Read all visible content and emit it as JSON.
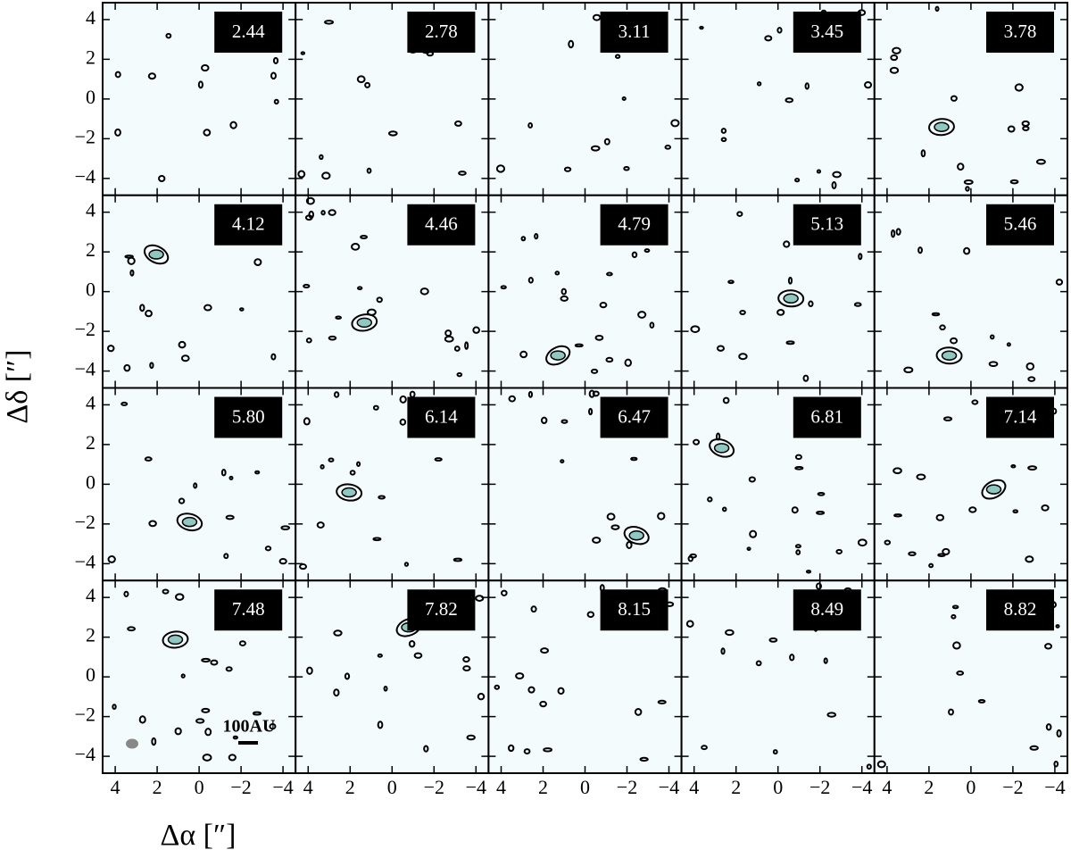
{
  "chart_data": {
    "type": "channel_map",
    "xlabel": "Δα [″]",
    "ylabel": "Δδ [″]",
    "xlim": [
      4.6,
      -4.6
    ],
    "ylim": [
      -4.85,
      4.85
    ],
    "xticks": [
      4,
      2,
      0,
      {
        "value": -2,
        "label": "−2"
      },
      {
        "value": -4,
        "label": "−4"
      }
    ],
    "yticks": [
      {
        "value": -4,
        "label": "−4"
      },
      {
        "value": -2,
        "label": "−2"
      },
      0,
      2,
      4
    ],
    "panel_labels": [
      "2.44",
      "2.78",
      "3.11",
      "3.45",
      "3.78",
      "4.12",
      "4.46",
      "4.79",
      "5.13",
      "5.46",
      "5.80",
      "6.14",
      "6.47",
      "6.81",
      "7.14",
      "7.48",
      "7.82",
      "8.15",
      "8.49",
      "8.82"
    ],
    "scale_bar_label": "100AU",
    "background": "#f4fbfc",
    "contour_fill": "#8fc8c0"
  }
}
